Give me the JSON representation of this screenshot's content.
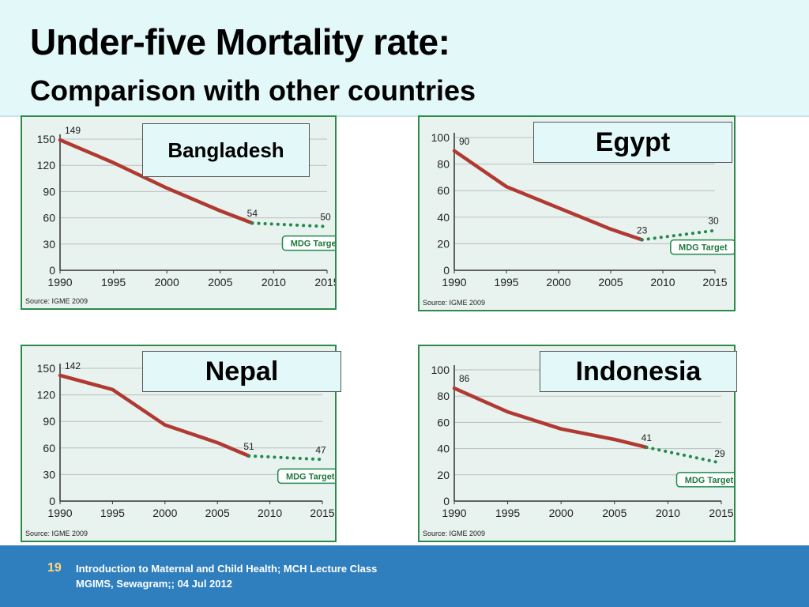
{
  "slide": {
    "title_line1": "Under-five Mortality rate:",
    "title_line2": "Comparison with other countries",
    "page_number": "19",
    "footer_line1": "Introduction to Maternal and Child Health; MCH Lecture Class",
    "footer_line2": "MGIMS, Sewagram;; 04 Jul  2012"
  },
  "colors": {
    "actual_line": "#b03a32",
    "target_line": "#1f8a4c",
    "panel_bg": "#e8f2ee",
    "panel_border": "#2e8a4a"
  },
  "chart_data": [
    {
      "type": "line",
      "country": "Bangladesh",
      "source": "Source: IGME 2009",
      "target_label": "MDG Target",
      "x_ticks": [
        "1990",
        "1995",
        "2000",
        "2005",
        "2010",
        "2015"
      ],
      "y_ticks": [
        0,
        30,
        60,
        90,
        120,
        150
      ],
      "xlim": [
        1990,
        2015
      ],
      "ylim": [
        0,
        150
      ],
      "actual": {
        "x": [
          1990,
          1995,
          2000,
          2005,
          2008
        ],
        "y": [
          149,
          123,
          94,
          68,
          54
        ]
      },
      "target": {
        "x": [
          2008,
          2015
        ],
        "y": [
          54,
          50
        ]
      },
      "labels": [
        {
          "x": 1990,
          "y": 149,
          "text": "149"
        },
        {
          "x": 2008,
          "y": 54,
          "text": "54"
        },
        {
          "x": 2015,
          "y": 50,
          "text": "50"
        }
      ]
    },
    {
      "type": "line",
      "country": "Egypt",
      "source": "Source: IGME 2009",
      "target_label": "MDG Target",
      "x_ticks": [
        "1990",
        "1995",
        "2000",
        "2005",
        "2010",
        "2015"
      ],
      "y_ticks": [
        0,
        20,
        40,
        60,
        80,
        100
      ],
      "xlim": [
        1990,
        2015
      ],
      "ylim": [
        0,
        100
      ],
      "actual": {
        "x": [
          1990,
          1995,
          2000,
          2005,
          2008
        ],
        "y": [
          90,
          63,
          47,
          31,
          23
        ]
      },
      "target": {
        "x": [
          2008,
          2015
        ],
        "y": [
          23,
          30
        ]
      },
      "labels": [
        {
          "x": 1990,
          "y": 90,
          "text": "90"
        },
        {
          "x": 2008,
          "y": 23,
          "text": "23"
        },
        {
          "x": 2015,
          "y": 30,
          "text": "30"
        }
      ]
    },
    {
      "type": "line",
      "country": "Nepal",
      "source": "Source: IGME 2009",
      "target_label": "MDG Target",
      "x_ticks": [
        "1990",
        "1995",
        "2000",
        "2005",
        "2010",
        "2015"
      ],
      "y_ticks": [
        0,
        30,
        60,
        90,
        120,
        150
      ],
      "xlim": [
        1990,
        2015
      ],
      "ylim": [
        0,
        150
      ],
      "actual": {
        "x": [
          1990,
          1995,
          2000,
          2005,
          2008
        ],
        "y": [
          142,
          126,
          86,
          66,
          51
        ]
      },
      "target": {
        "x": [
          2008,
          2015
        ],
        "y": [
          51,
          47
        ]
      },
      "labels": [
        {
          "x": 1990,
          "y": 142,
          "text": "142"
        },
        {
          "x": 2008,
          "y": 51,
          "text": "51"
        },
        {
          "x": 2015,
          "y": 47,
          "text": "47"
        }
      ]
    },
    {
      "type": "line",
      "country": "Indonesia",
      "source": "Source: IGME 2009",
      "target_label": "MDG Target",
      "x_ticks": [
        "1990",
        "1995",
        "2000",
        "2005",
        "2010",
        "2015"
      ],
      "y_ticks": [
        0,
        20,
        40,
        60,
        80,
        100
      ],
      "xlim": [
        1990,
        2015
      ],
      "ylim": [
        0,
        100
      ],
      "actual": {
        "x": [
          1990,
          1995,
          2000,
          2005,
          2008
        ],
        "y": [
          86,
          68,
          55,
          47,
          41
        ]
      },
      "target": {
        "x": [
          2008,
          2015
        ],
        "y": [
          41,
          29
        ]
      },
      "labels": [
        {
          "x": 1990,
          "y": 86,
          "text": "86"
        },
        {
          "x": 2008,
          "y": 41,
          "text": "41"
        },
        {
          "x": 2015,
          "y": 29,
          "text": "29"
        }
      ]
    }
  ]
}
